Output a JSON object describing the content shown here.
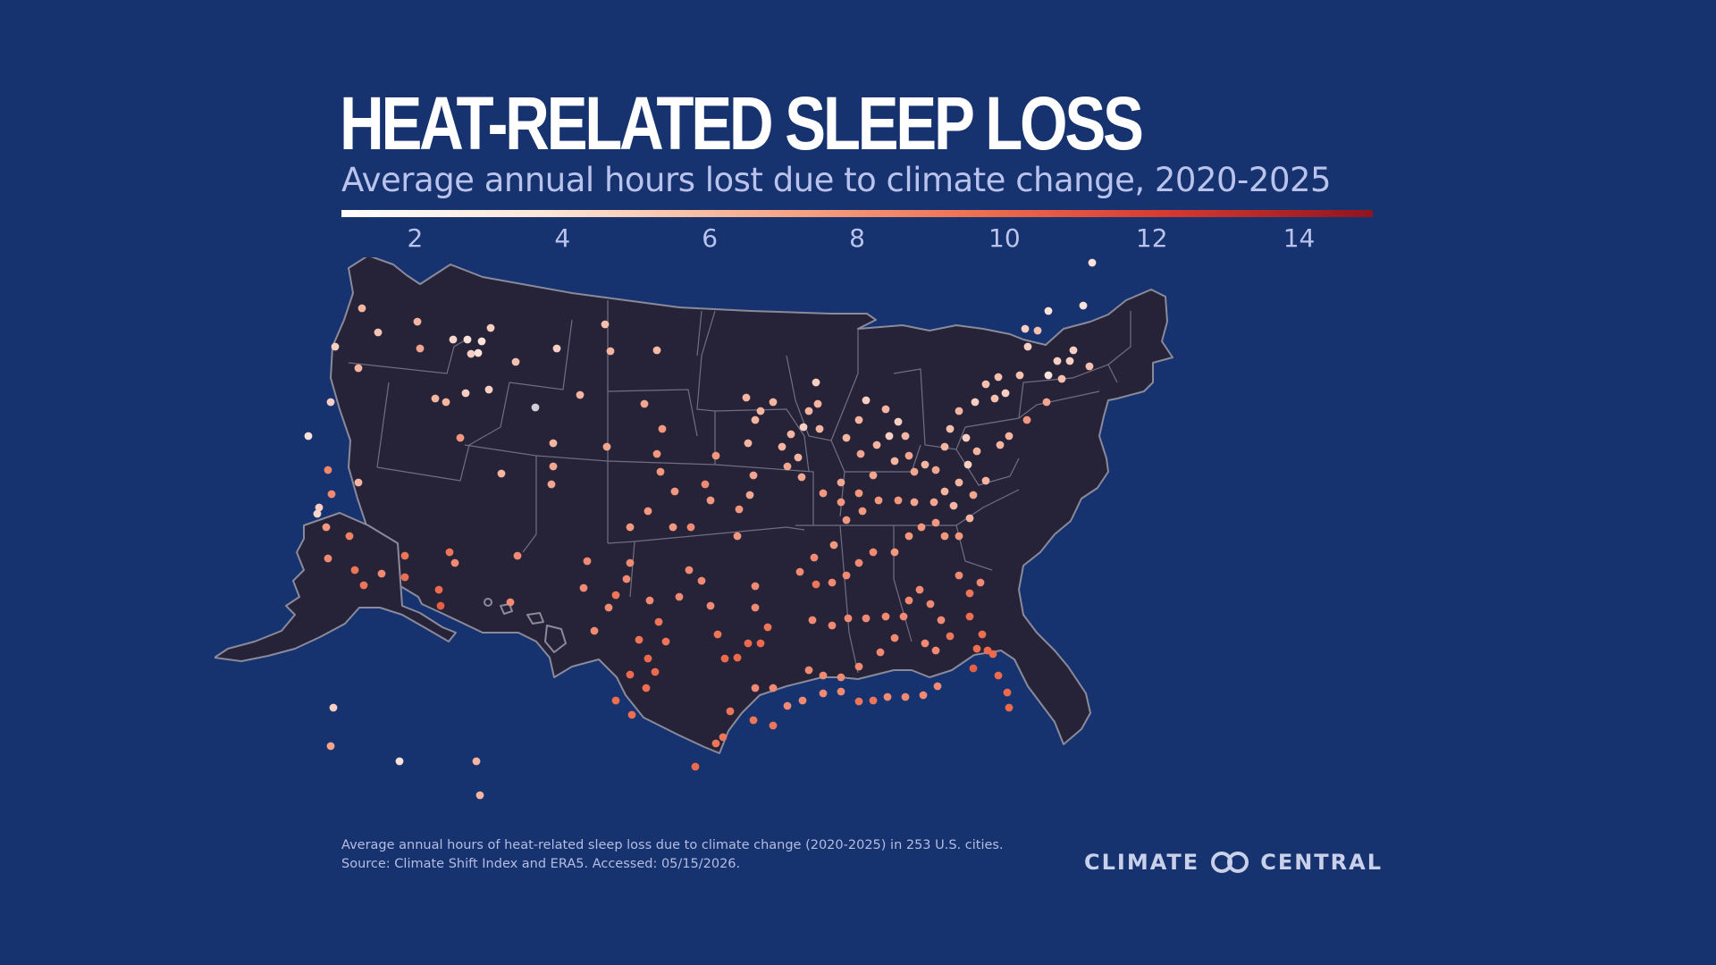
{
  "header": {
    "title": "HEAT-RELATED SLEEP LOSS",
    "subtitle": "Average annual hours lost due to climate change, 2020-2025"
  },
  "legend": {
    "ticks": [
      "2",
      "4",
      "6",
      "8",
      "10",
      "12",
      "14"
    ],
    "min": 1,
    "max": 15,
    "colors": [
      "#ffffff",
      "#fde5d6",
      "#f6a98a",
      "#ee6e50",
      "#d63a30",
      "#8f1420"
    ]
  },
  "footnote": {
    "line1": "Average annual hours of heat-related sleep loss due to climate change (2020-2025) in 253 U.S. cities.",
    "line2": "Source: Climate Shift Index and ERA5. Accessed: 05/15/2026."
  },
  "logo": {
    "left_text": "CLIMATE",
    "right_text": "CENTRAL",
    "mark": "interlocking-rings-icon"
  },
  "map_colors": {
    "background": "#16326f",
    "land": "#262338",
    "borders": "#8a8a9a"
  }
}
